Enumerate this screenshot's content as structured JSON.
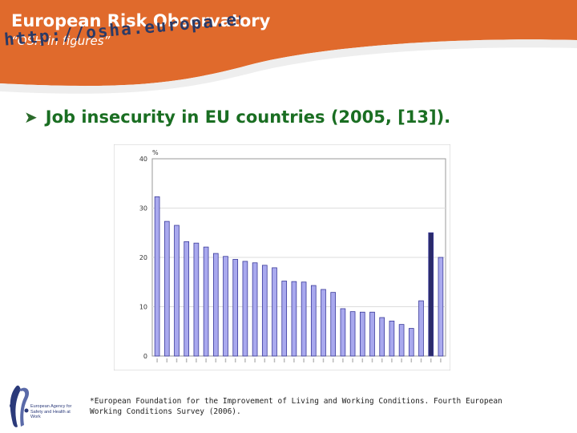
{
  "header": {
    "title": "European Risk Observatory",
    "subtitle": "“OSH in figures”",
    "url": "http://osha.europa.eu",
    "accent": "#e06a2c"
  },
  "bullet": {
    "text": "Job insecurity in EU countries (2005, [13])."
  },
  "chart_data": {
    "type": "bar",
    "y_unit_label": "%",
    "ylim": [
      0,
      40
    ],
    "yticks": [
      0,
      10,
      20,
      30,
      40
    ],
    "grid": true,
    "legend": "none",
    "bar_color": "#a9a9ee",
    "bar_edge": "#3a3a9a",
    "dark_bar_color": "#2a2a6a",
    "values": [
      32.3,
      27.3,
      26.5,
      23.2,
      22.9,
      22.1,
      20.8,
      20.2,
      19.6,
      19.2,
      18.9,
      18.4,
      17.9,
      15.2,
      15.1,
      15.0,
      14.3,
      13.5,
      12.9,
      9.6,
      9.0,
      8.9,
      8.9,
      7.8,
      7.1,
      6.4,
      5.6,
      11.2,
      25.0,
      20.0
    ]
  },
  "footnote": {
    "text": "*European Foundation for the Improvement of Living and Working Conditions. Fourth European Working Conditions Survey (2006)."
  },
  "logo": {
    "text": "European Agency for Safety and Health at Work"
  }
}
